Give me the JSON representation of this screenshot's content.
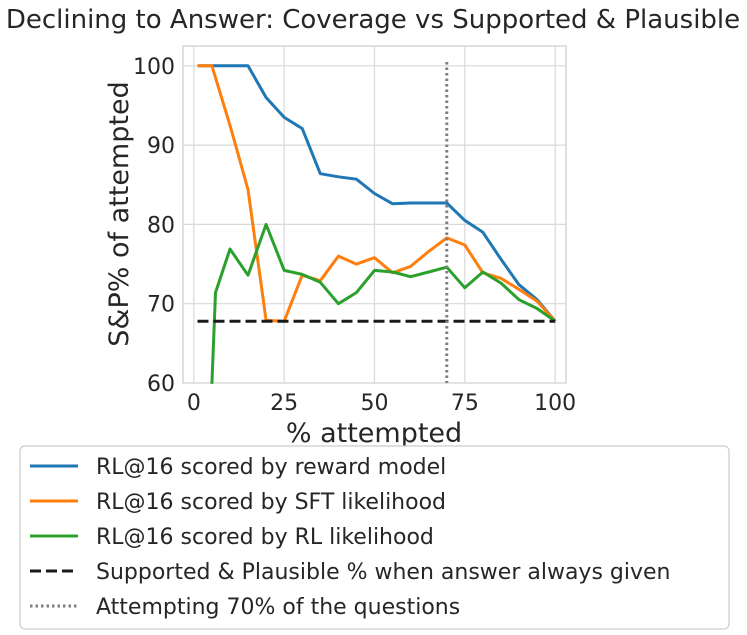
{
  "chart_data": {
    "type": "line",
    "title": "Declining to Answer: Coverage vs Supported & Plausible",
    "xlabel": "% attempted",
    "ylabel": "S&P% of attempted",
    "xlim": [
      -3,
      103
    ],
    "ylim": [
      60,
      102.5
    ],
    "xticks": [
      0,
      25,
      50,
      75,
      100
    ],
    "yticks": [
      60,
      70,
      80,
      90,
      100
    ],
    "grid": true,
    "legend_position": "bottom",
    "series": [
      {
        "name": "RL@16 scored by reward model",
        "color": "#1f77b4",
        "style": "solid",
        "x": [
          1,
          5,
          10,
          15,
          20,
          25,
          30,
          35,
          40,
          45,
          50,
          55,
          60,
          65,
          70,
          75,
          80,
          85,
          90,
          95,
          100
        ],
        "y": [
          100,
          100,
          100,
          100,
          96,
          93.5,
          92.1,
          86.4,
          86.0,
          85.7,
          83.9,
          82.6,
          82.7,
          82.7,
          82.7,
          80.5,
          79.0,
          75.6,
          72.4,
          70.5,
          67.8
        ]
      },
      {
        "name": "RL@16 scored by SFT likelihood",
        "color": "#ff7f0e",
        "style": "solid",
        "x": [
          1,
          5,
          10,
          15,
          20,
          25,
          30,
          35,
          40,
          45,
          50,
          55,
          60,
          65,
          70,
          75,
          80,
          85,
          90,
          95,
          100
        ],
        "y": [
          100,
          100,
          92.5,
          84.4,
          67.9,
          67.8,
          73.6,
          72.9,
          76.0,
          75.0,
          75.8,
          73.9,
          74.7,
          76.6,
          78.3,
          77.4,
          73.9,
          73.2,
          71.8,
          70.3,
          67.8
        ]
      },
      {
        "name": "RL@16 scored by RL likelihood",
        "color": "#2ca02c",
        "style": "solid",
        "x": [
          5,
          6,
          10,
          15,
          20,
          25,
          30,
          35,
          40,
          45,
          50,
          55,
          60,
          65,
          70,
          75,
          80,
          85,
          90,
          95,
          100
        ],
        "y": [
          59.9,
          71.4,
          76.9,
          73.6,
          80.0,
          74.2,
          73.7,
          72.7,
          70.0,
          71.4,
          74.2,
          74.0,
          73.4,
          74.0,
          74.6,
          72.0,
          74.0,
          72.6,
          70.5,
          69.4,
          67.8
        ]
      },
      {
        "name": "Supported & Plausible % when answer always given",
        "color": "#1a1a1a",
        "style": "dashed",
        "x": [
          1,
          100
        ],
        "y": [
          67.8,
          67.8
        ]
      }
    ],
    "vlines": [
      {
        "name": "Attempting 70% of the questions",
        "color": "#7f7f7f",
        "style": "dotted",
        "x": 70
      }
    ]
  }
}
